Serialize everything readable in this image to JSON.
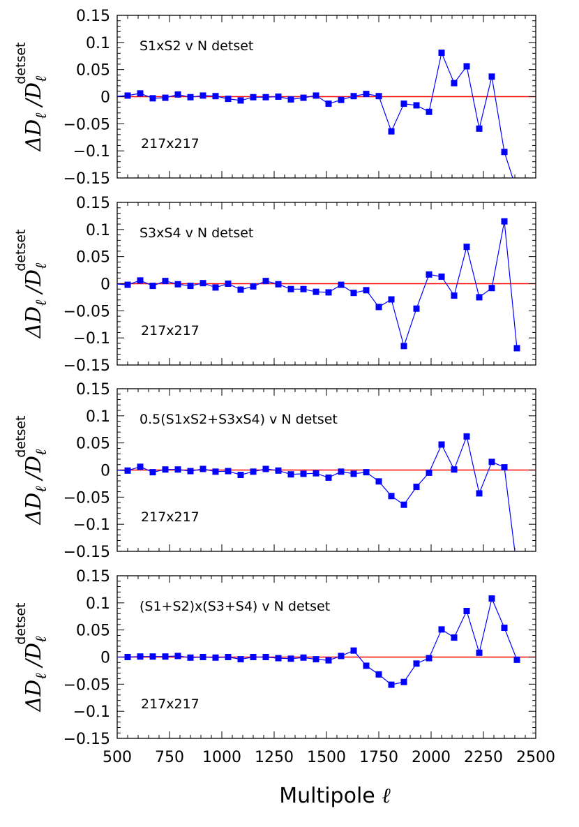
{
  "chart_data": [
    {
      "type": "line",
      "panel": 1,
      "title": "S1xS2 v N detset",
      "annotation": "217x217",
      "ylabel": {
        "main": "ΔD",
        "sub1": "ℓ",
        "slash": "/",
        "denom": "D",
        "sub2": "ℓ",
        "sup": "detset"
      },
      "xlim": [
        500,
        2500
      ],
      "ylim": [
        -0.15,
        0.15
      ],
      "x": [
        550,
        610,
        670,
        730,
        790,
        850,
        910,
        970,
        1030,
        1090,
        1150,
        1210,
        1270,
        1330,
        1390,
        1450,
        1510,
        1570,
        1630,
        1690,
        1750,
        1810,
        1870,
        1930,
        1990,
        2050,
        2110,
        2170,
        2230,
        2290,
        2350
      ],
      "values": [
        0.002,
        0.006,
        -0.003,
        -0.002,
        0.004,
        -0.001,
        0.002,
        0.001,
        -0.004,
        -0.007,
        -0.001,
        -0.001,
        0.0,
        -0.005,
        -0.002,
        0.002,
        -0.013,
        -0.006,
        0.001,
        0.005,
        0.001,
        -0.064,
        -0.013,
        -0.016,
        -0.028,
        0.081,
        0.025,
        0.056,
        -0.059,
        0.037,
        -0.102
      ],
      "tail_to": [
        2390,
        -0.15
      ]
    },
    {
      "type": "line",
      "panel": 2,
      "title": "S3xS4 v N detset",
      "annotation": "217x217",
      "ylabel": {
        "main": "ΔD",
        "sub1": "ℓ",
        "slash": "/",
        "denom": "D",
        "sub2": "ℓ",
        "sup": "detset"
      },
      "xlim": [
        500,
        2500
      ],
      "ylim": [
        -0.15,
        0.15
      ],
      "x": [
        550,
        610,
        670,
        730,
        790,
        850,
        910,
        970,
        1030,
        1090,
        1150,
        1210,
        1270,
        1330,
        1390,
        1450,
        1510,
        1570,
        1630,
        1690,
        1750,
        1810,
        1870,
        1930,
        1990,
        2050,
        2110,
        2170,
        2230,
        2290,
        2350,
        2410
      ],
      "values": [
        -0.002,
        0.006,
        -0.004,
        0.005,
        -0.001,
        -0.004,
        0.001,
        -0.007,
        0.0,
        -0.011,
        -0.005,
        0.005,
        -0.001,
        -0.01,
        -0.01,
        -0.015,
        -0.016,
        -0.002,
        -0.017,
        -0.012,
        -0.043,
        -0.029,
        -0.115,
        -0.046,
        0.017,
        0.013,
        -0.022,
        0.068,
        -0.025,
        -0.008,
        0.115,
        -0.119
      ]
    },
    {
      "type": "line",
      "panel": 3,
      "title": "0.5(S1xS2+S3xS4) v N detset",
      "annotation": "217x217",
      "ylabel": {
        "main": "ΔD",
        "sub1": "ℓ",
        "slash": "/",
        "denom": "D",
        "sub2": "ℓ",
        "sup": "detset"
      },
      "xlim": [
        500,
        2500
      ],
      "ylim": [
        -0.15,
        0.15
      ],
      "x": [
        550,
        610,
        670,
        730,
        790,
        850,
        910,
        970,
        1030,
        1090,
        1150,
        1210,
        1270,
        1330,
        1390,
        1450,
        1510,
        1570,
        1630,
        1690,
        1750,
        1810,
        1870,
        1930,
        1990,
        2050,
        2110,
        2170,
        2230,
        2290,
        2350
      ],
      "values": [
        -0.001,
        0.006,
        -0.004,
        0.001,
        0.001,
        -0.002,
        0.002,
        -0.003,
        -0.002,
        -0.009,
        -0.003,
        0.002,
        -0.001,
        -0.008,
        -0.007,
        -0.006,
        -0.014,
        -0.003,
        -0.007,
        -0.004,
        -0.021,
        -0.048,
        -0.064,
        -0.031,
        -0.005,
        0.047,
        0.001,
        0.062,
        -0.043,
        0.015,
        0.005
      ],
      "tail_to": [
        2400,
        -0.15
      ]
    },
    {
      "type": "line",
      "panel": 4,
      "title": "(S1+S2)x(S3+S4) v N detset",
      "annotation": "217x217",
      "ylabel": {
        "main": "ΔD",
        "sub1": "ℓ",
        "slash": "/",
        "denom": "D",
        "sub2": "ℓ",
        "sup": "detset"
      },
      "xlabel": "Multipole",
      "xlabel_symbol": "ℓ",
      "xlim": [
        500,
        2500
      ],
      "ylim": [
        -0.15,
        0.15
      ],
      "x": [
        550,
        610,
        670,
        730,
        790,
        850,
        910,
        970,
        1030,
        1090,
        1150,
        1210,
        1270,
        1330,
        1390,
        1450,
        1510,
        1570,
        1630,
        1690,
        1750,
        1810,
        1870,
        1930,
        1990,
        2050,
        2110,
        2170,
        2230,
        2290,
        2350,
        2410
      ],
      "values": [
        0.0,
        0.001,
        0.001,
        0.001,
        0.002,
        -0.001,
        0.0,
        -0.001,
        0.0,
        -0.004,
        0.0,
        0.0,
        -0.002,
        -0.003,
        -0.001,
        -0.004,
        -0.006,
        0.002,
        0.012,
        -0.016,
        -0.032,
        -0.051,
        -0.046,
        -0.012,
        -0.002,
        0.051,
        0.036,
        0.085,
        0.008,
        0.108,
        0.054,
        -0.005
      ]
    }
  ],
  "axes": {
    "y_ticks": [
      "0.15",
      "0.1",
      "0.05",
      "0",
      "−0.05",
      "−0.1",
      "−0.15"
    ],
    "y_tick_values": [
      0.15,
      0.1,
      0.05,
      0,
      -0.05,
      -0.1,
      -0.15
    ],
    "x_ticks": [
      "500",
      "750",
      "1000",
      "1250",
      "1500",
      "1750",
      "2000",
      "2250",
      "2500"
    ],
    "x_tick_values": [
      500,
      750,
      1000,
      1250,
      1500,
      1750,
      2000,
      2250,
      2500
    ]
  },
  "colors": {
    "series": "#0000ff",
    "zero_line": "#ff0000",
    "axes": "#000000"
  }
}
